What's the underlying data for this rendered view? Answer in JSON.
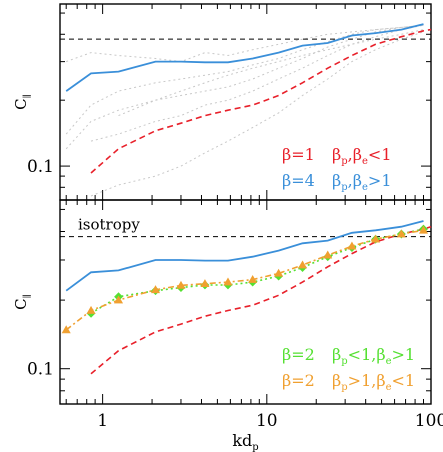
{
  "chart_data": [
    {
      "type": "line",
      "panel": "top",
      "xscale": "log",
      "yscale": "log",
      "xlim": [
        0.55,
        100
      ],
      "ylim": [
        0.07,
        0.55
      ],
      "ylabel": "C",
      "ylabel_sub": "∥",
      "xticks": [
        {
          "v": 1,
          "label": ""
        },
        {
          "v": 10,
          "label": ""
        },
        {
          "v": 100,
          "label": ""
        }
      ],
      "yticks": [
        {
          "v": 0.1,
          "label": "0.1"
        }
      ],
      "reference": {
        "y": 0.38,
        "label": ""
      },
      "series": [
        {
          "name": "β=4 βp,βe>1",
          "color": "#3a8fd9",
          "style": "solid",
          "x": [
            0.6,
            0.85,
            1.25,
            2.1,
            3.0,
            4.2,
            5.8,
            8.2,
            11.8,
            16.5,
            23.5,
            33,
            46,
            66,
            90
          ],
          "y": [
            0.22,
            0.265,
            0.27,
            0.3,
            0.3,
            0.298,
            0.298,
            0.31,
            0.33,
            0.355,
            0.365,
            0.395,
            0.405,
            0.42,
            0.445
          ]
        },
        {
          "name": "β=1 βp,βe<1",
          "color": "#e8202a",
          "style": "dashed",
          "x": [
            0.85,
            1.25,
            2.1,
            3.0,
            4.2,
            5.8,
            8.2,
            11.8,
            16.5,
            23.5,
            33,
            46,
            66,
            90,
            100
          ],
          "y": [
            0.093,
            0.12,
            0.145,
            0.157,
            0.17,
            0.18,
            0.19,
            0.21,
            0.24,
            0.28,
            0.32,
            0.36,
            0.39,
            0.415,
            0.42
          ]
        }
      ],
      "background_series": [
        {
          "x": [
            0.6,
            0.85,
            1.25,
            2.1,
            3.0,
            4.2,
            5.8,
            8.2,
            11.8,
            16.5,
            23.5,
            33,
            46,
            66,
            90
          ],
          "y": [
            0.14,
            0.19,
            0.22,
            0.24,
            0.25,
            0.26,
            0.27,
            0.29,
            0.31,
            0.34,
            0.37,
            0.4,
            0.42,
            0.43,
            0.44
          ]
        },
        {
          "x": [
            0.6,
            0.85,
            1.25,
            2.1,
            3.0,
            4.2,
            5.8,
            8.2,
            11.8,
            16.5,
            23.5,
            33,
            46,
            66,
            90
          ],
          "y": [
            0.12,
            0.16,
            0.18,
            0.2,
            0.21,
            0.22,
            0.23,
            0.25,
            0.28,
            0.31,
            0.35,
            0.38,
            0.41,
            0.43,
            0.44
          ]
        },
        {
          "x": [
            0.85,
            1.25,
            2.1,
            3.0,
            4.2,
            5.8,
            8.2,
            11.8,
            16.5,
            23.5,
            33,
            46,
            66,
            90
          ],
          "y": [
            0.13,
            0.14,
            0.16,
            0.17,
            0.19,
            0.2,
            0.22,
            0.25,
            0.28,
            0.32,
            0.36,
            0.39,
            0.42,
            0.44
          ]
        },
        {
          "x": [
            0.6,
            0.85,
            1.25,
            2.1,
            3.0,
            4.2,
            5.8,
            8.2,
            11.8,
            16.5,
            23.5,
            33,
            46,
            66,
            90
          ],
          "y": [
            0.3,
            0.33,
            0.32,
            0.31,
            0.3,
            0.33,
            0.32,
            0.34,
            0.36,
            0.38,
            0.4,
            0.41,
            0.42,
            0.43,
            0.44
          ]
        },
        {
          "x": [
            0.85,
            1.25,
            2.1,
            3.0,
            4.2,
            5.8,
            8.2,
            11.8,
            16.5,
            23.5,
            33,
            46,
            66,
            90
          ],
          "y": [
            0.073,
            0.082,
            0.09,
            0.1,
            0.115,
            0.13,
            0.15,
            0.175,
            0.21,
            0.25,
            0.3,
            0.34,
            0.38,
            0.41
          ]
        },
        {
          "x": [
            1.25,
            2.1,
            3.0,
            4.2,
            5.8,
            8.2,
            11.8,
            16.5,
            23.5,
            33,
            46,
            66,
            90
          ],
          "y": [
            0.17,
            0.2,
            0.22,
            0.24,
            0.26,
            0.28,
            0.3,
            0.32,
            0.34,
            0.36,
            0.38,
            0.4,
            0.42
          ]
        }
      ],
      "legend": [
        {
          "beta": "β=1",
          "cond_main": "β",
          "sub1": "p",
          "mid": ",β",
          "sub2": "e",
          "rel": "<1",
          "color": "#e8202a"
        },
        {
          "beta": "β=4",
          "cond_main": "β",
          "sub1": "p",
          "mid": ",β",
          "sub2": "e",
          "rel": ">1",
          "color": "#3a8fd9"
        }
      ]
    },
    {
      "type": "line",
      "panel": "bottom",
      "xscale": "log",
      "yscale": "log",
      "xlim": [
        0.55,
        100
      ],
      "ylim": [
        0.07,
        0.55
      ],
      "xlabel": "kd",
      "xlabel_sub": "p",
      "ylabel": "C",
      "ylabel_sub": "∥",
      "xticks": [
        {
          "v": 1,
          "label": "1"
        },
        {
          "v": 10,
          "label": "10"
        },
        {
          "v": 100,
          "label": "100"
        }
      ],
      "yticks": [
        {
          "v": 0.1,
          "label": "0.1"
        }
      ],
      "reference": {
        "y": 0.38,
        "label": "isotropy"
      },
      "series": [
        {
          "name": "β=4 βp,βe>1",
          "color": "#3a8fd9",
          "style": "solid",
          "x": [
            0.6,
            0.85,
            1.25,
            2.1,
            3.0,
            4.2,
            5.8,
            8.2,
            11.8,
            16.5,
            23.5,
            33,
            46,
            66,
            90
          ],
          "y": [
            0.22,
            0.265,
            0.27,
            0.3,
            0.3,
            0.298,
            0.298,
            0.31,
            0.33,
            0.355,
            0.365,
            0.395,
            0.405,
            0.42,
            0.445
          ]
        },
        {
          "name": "β=1 βp,βe<1",
          "color": "#e8202a",
          "style": "dashed",
          "x": [
            0.85,
            1.25,
            2.1,
            3.0,
            4.2,
            5.8,
            8.2,
            11.8,
            16.5,
            23.5,
            33,
            46,
            66,
            90,
            100
          ],
          "y": [
            0.095,
            0.12,
            0.145,
            0.157,
            0.17,
            0.18,
            0.19,
            0.21,
            0.24,
            0.28,
            0.32,
            0.36,
            0.39,
            0.41,
            0.42
          ]
        },
        {
          "name": "β=2 βp<1,βe>1",
          "color": "#55e032",
          "style": "dotted",
          "marker": "diamond",
          "x": [
            0.85,
            1.25,
            2.1,
            3.0,
            4.2,
            5.8,
            8.2,
            11.8,
            16.5,
            23.5,
            33,
            46,
            66,
            90
          ],
          "y": [
            0.175,
            0.207,
            0.22,
            0.227,
            0.233,
            0.233,
            0.24,
            0.255,
            0.278,
            0.31,
            0.34,
            0.37,
            0.39,
            0.41
          ]
        },
        {
          "name": "β=2 βp>1,βe<1",
          "color": "#f0a030",
          "style": "dashdot",
          "marker": "triangle",
          "x": [
            0.6,
            0.85,
            1.25,
            2.1,
            3.0,
            4.2,
            5.8,
            8.2,
            11.8,
            16.5,
            23.5,
            33,
            46,
            66,
            90
          ],
          "y": [
            0.148,
            0.18,
            0.2,
            0.222,
            0.232,
            0.236,
            0.24,
            0.246,
            0.262,
            0.285,
            0.315,
            0.345,
            0.37,
            0.39,
            0.405
          ]
        }
      ],
      "legend": [
        {
          "beta": "β=2",
          "cond_main": "β",
          "sub1": "p",
          "mid": "<1,β",
          "sub2": "e",
          "rel": ">1",
          "color": "#55e032"
        },
        {
          "beta": "β=2",
          "cond_main": "β",
          "sub1": "p",
          "mid": ">1,β",
          "sub2": "e",
          "rel": "<1",
          "color": "#f0a030"
        }
      ]
    }
  ]
}
